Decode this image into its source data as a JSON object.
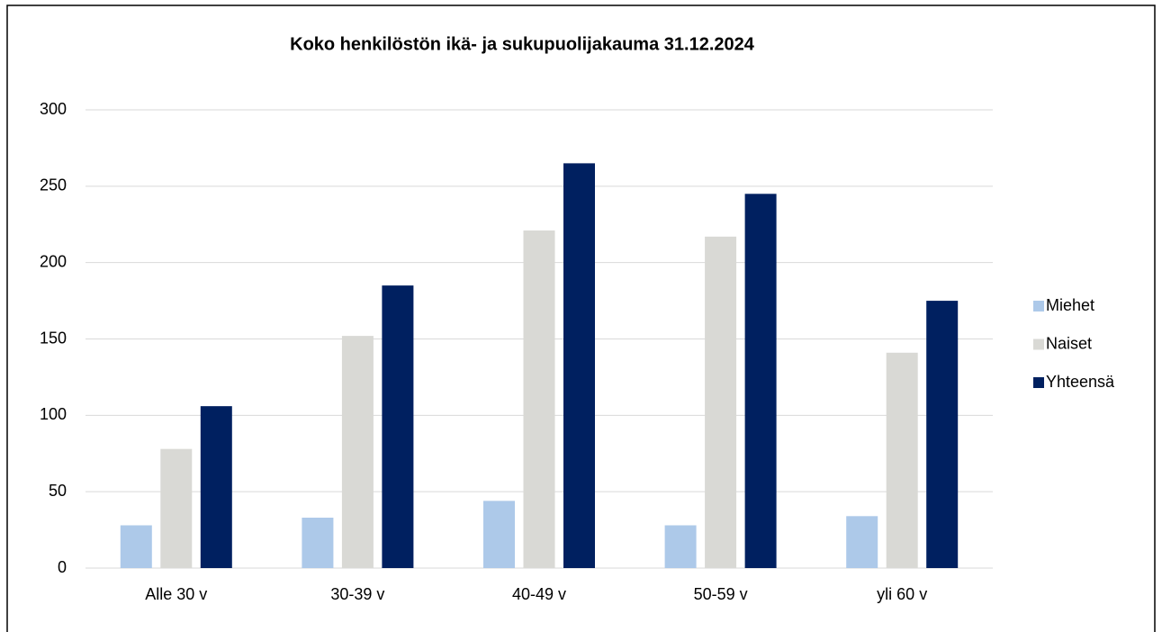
{
  "chart_data": {
    "type": "bar",
    "title": "Koko henkilöstön ikä- ja sukupuolijakauma 31.12.2024",
    "categories": [
      "Alle 30 v",
      "30-39 v",
      "40-49 v",
      "50-59 v",
      "yli 60 v"
    ],
    "series": [
      {
        "name": "Miehet",
        "color": "#adc9e9",
        "values": [
          28,
          33,
          44,
          28,
          34
        ]
      },
      {
        "name": "Naiset",
        "color": "#d9d9d5",
        "values": [
          78,
          152,
          221,
          217,
          141
        ]
      },
      {
        "name": "Yhteensä",
        "color": "#002060",
        "values": [
          106,
          185,
          265,
          245,
          175
        ]
      }
    ],
    "ylim": [
      0,
      300
    ],
    "yticks": [
      0,
      50,
      100,
      150,
      200,
      250,
      300
    ],
    "grid": true,
    "legend": "right"
  }
}
